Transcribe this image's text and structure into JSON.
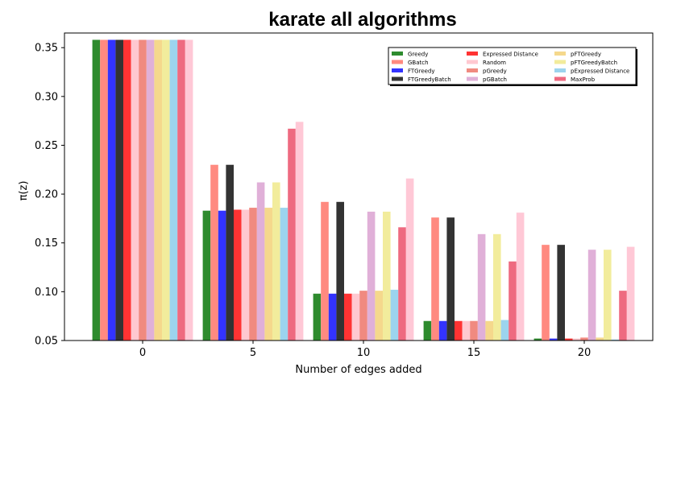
{
  "chart_data": {
    "type": "bar",
    "title": "karate all algorithms",
    "xlabel": "Number of edges added",
    "ylabel": "π(z)",
    "categories": [
      "0",
      "5",
      "10",
      "15",
      "20"
    ],
    "ylim": [
      0.05,
      0.365
    ],
    "yticks": [
      "0.05",
      "0.10",
      "0.15",
      "0.20",
      "0.25",
      "0.30",
      "0.35"
    ],
    "legend_position": "top-right",
    "legend_columns": 3,
    "series": [
      {
        "name": "Greedy",
        "color": "#2e8b2e",
        "values": [
          0.358,
          0.183,
          0.098,
          0.07,
          0.052
        ]
      },
      {
        "name": "GBatch",
        "color": "#ff8a80",
        "values": [
          0.358,
          0.23,
          0.192,
          0.176,
          0.148
        ]
      },
      {
        "name": "FTGreedy",
        "color": "#3333ff",
        "values": [
          0.358,
          0.183,
          0.098,
          0.07,
          0.052
        ]
      },
      {
        "name": "FTGreedyBatch",
        "color": "#333333",
        "values": [
          0.358,
          0.23,
          0.192,
          0.176,
          0.148
        ]
      },
      {
        "name": "Expressed Distance",
        "color": "#ff3333",
        "values": [
          0.358,
          0.184,
          0.098,
          0.07,
          0.052
        ]
      },
      {
        "name": "Random",
        "color": "#ffc8d0",
        "values": [
          0.358,
          0.184,
          0.098,
          0.07,
          0.052
        ]
      },
      {
        "name": "pGreedy",
        "color": "#f08a80",
        "values": [
          0.358,
          0.186,
          0.101,
          0.07,
          0.053
        ]
      },
      {
        "name": "pGBatch",
        "color": "#e0b0d8",
        "values": [
          0.358,
          0.212,
          0.182,
          0.159,
          0.143
        ]
      },
      {
        "name": "pFTGreedy",
        "color": "#f5d88c",
        "values": [
          0.358,
          0.186,
          0.101,
          0.07,
          0.053
        ]
      },
      {
        "name": "pFTGreedyBatch",
        "color": "#f2ec9c",
        "values": [
          0.358,
          0.212,
          0.182,
          0.159,
          0.143
        ]
      },
      {
        "name": "pExpressed Distance",
        "color": "#9cd4ee",
        "values": [
          0.358,
          0.186,
          0.102,
          0.071,
          0.051
        ]
      },
      {
        "name": "MaxProb",
        "color": "#ee6a80",
        "values": [
          0.358,
          0.267,
          0.166,
          0.131,
          0.101
        ]
      },
      {
        "name": "",
        "color": "#ffc8d6",
        "values": [
          0.358,
          0.274,
          0.216,
          0.181,
          0.146
        ]
      }
    ]
  }
}
